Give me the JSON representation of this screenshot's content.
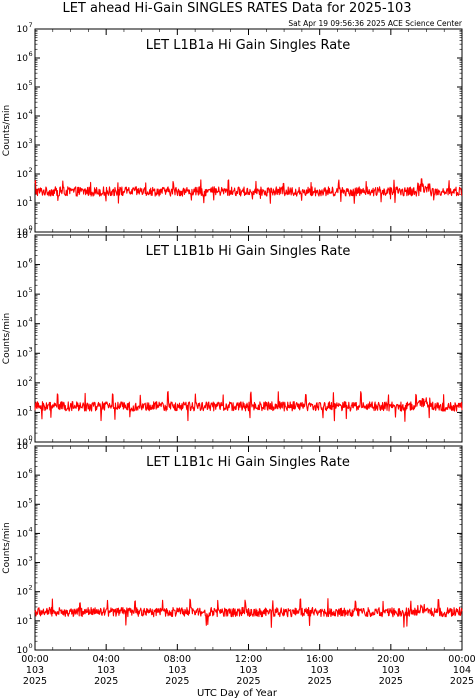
{
  "figure": {
    "title": "LET ahead Hi-Gain SINGLES RATES Data for 2025-103",
    "timestamp": "Sat Apr 19 09:56:36 2025 ACE Science Center",
    "xlabel": "UTC Day of Year"
  },
  "colors": {
    "line": "#ff0000",
    "panel_title": "#0000cc",
    "axes": "#000000"
  },
  "chart_data": [
    {
      "type": "line",
      "title": "LET L1B1a Hi Gain Singles Rate",
      "ylabel": "Counts/min",
      "yscale": "log",
      "ylim": [
        1,
        10000000
      ],
      "xlim": [
        0,
        24
      ],
      "typical_value": 25,
      "spike_value": 55,
      "dip_value": 12,
      "series": [
        {
          "x_units": "hours of day 2025-103",
          "baseline": 25
        }
      ]
    },
    {
      "type": "line",
      "title": "LET L1B1b Hi Gain Singles Rate",
      "ylabel": "Counts/min",
      "yscale": "log",
      "ylim": [
        1,
        10000000
      ],
      "xlim": [
        0,
        24
      ],
      "typical_value": 16,
      "spike_value": 45,
      "dip_value": 6,
      "series": [
        {
          "x_units": "hours of day 2025-103",
          "baseline": 16
        }
      ]
    },
    {
      "type": "line",
      "title": "LET L1B1c Hi Gain Singles Rate",
      "ylabel": "Counts/min",
      "yscale": "log",
      "ylim": [
        1,
        10000000
      ],
      "xlim": [
        0,
        24
      ],
      "typical_value": 20,
      "spike_value": 50,
      "dip_value": 7,
      "series": [
        {
          "x_units": "hours of day 2025-103",
          "baseline": 20
        }
      ]
    }
  ],
  "ytick_labels": [
    "10",
    "10",
    "10",
    "10",
    "10",
    "10",
    "10",
    "10"
  ],
  "ytick_exponents": [
    "0",
    "1",
    "2",
    "3",
    "4",
    "5",
    "6",
    "7"
  ],
  "xticks": [
    {
      "time": "00:00",
      "day": "103",
      "year": "2025"
    },
    {
      "time": "04:00",
      "day": "103",
      "year": "2025"
    },
    {
      "time": "08:00",
      "day": "103",
      "year": "2025"
    },
    {
      "time": "12:00",
      "day": "103",
      "year": "2025"
    },
    {
      "time": "16:00",
      "day": "103",
      "year": "2025"
    },
    {
      "time": "20:00",
      "day": "103",
      "year": "2025"
    },
    {
      "time": "00:00",
      "day": "104",
      "year": "2025"
    }
  ]
}
